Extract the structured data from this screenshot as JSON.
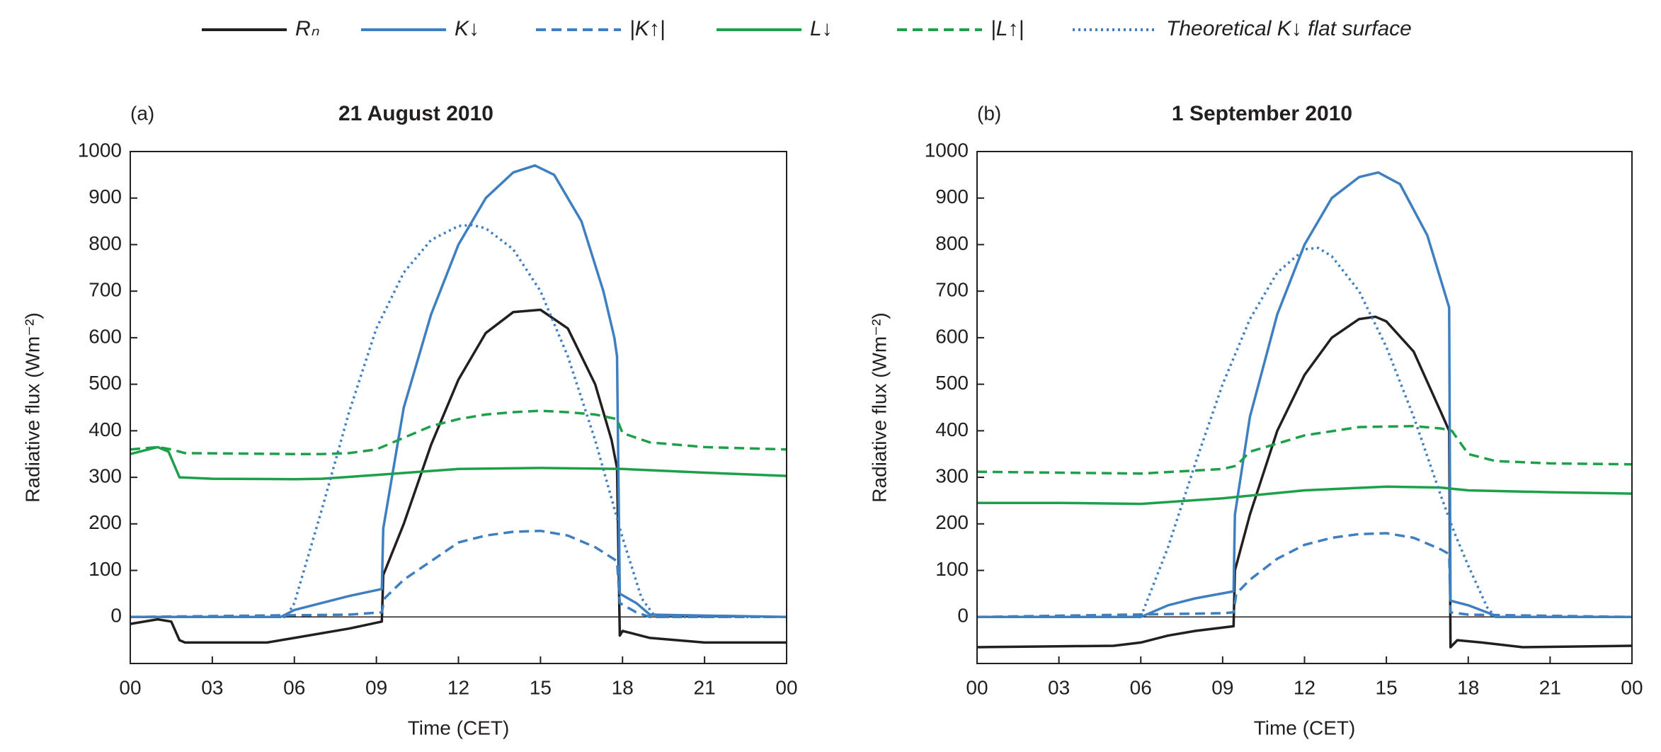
{
  "chart_data": [
    {
      "type": "line",
      "panel_label": "(a)",
      "title": "21 August 2010",
      "x_label": "Time (CET)",
      "y_label": "Radiative flux (Wm⁻²)",
      "xlim": [
        0,
        24
      ],
      "xticks": [
        {
          "value": 0,
          "label": "00"
        },
        {
          "value": 3,
          "label": "03"
        },
        {
          "value": 6,
          "label": "06"
        },
        {
          "value": 9,
          "label": "09"
        },
        12,
        15,
        18,
        21,
        {
          "value": 24,
          "label": "00"
        }
      ],
      "ylim": [
        -100,
        1000
      ],
      "yticks": [
        0,
        100,
        200,
        300,
        400,
        500,
        600,
        700,
        800,
        900,
        1000
      ],
      "series": [
        {
          "name": "Rₙ",
          "color": "#231f20",
          "dash": "solid",
          "x": [
            0,
            1,
            1.5,
            1.8,
            2,
            5,
            6,
            8,
            9.2,
            9.25,
            10,
            11,
            12,
            13,
            14,
            15,
            16,
            17,
            17.6,
            17.8,
            17.9,
            18,
            19,
            21,
            24
          ],
          "values": [
            -15,
            -5,
            -10,
            -50,
            -55,
            -55,
            -45,
            -25,
            -10,
            90,
            200,
            370,
            510,
            610,
            655,
            660,
            620,
            500,
            380,
            320,
            -40,
            -30,
            -45,
            -55,
            -55
          ]
        },
        {
          "name": "K↓",
          "color": "#3d7fc0",
          "dash": "solid",
          "x": [
            0,
            5.5,
            6,
            7,
            8,
            9.2,
            9.25,
            10,
            11,
            12,
            13,
            14,
            14.8,
            15.5,
            16.5,
            17.3,
            17.7,
            17.8,
            17.9,
            18.5,
            19,
            24
          ],
          "values": [
            0,
            0,
            15,
            30,
            45,
            60,
            190,
            450,
            650,
            800,
            900,
            955,
            970,
            950,
            850,
            700,
            600,
            560,
            50,
            30,
            5,
            0
          ]
        },
        {
          "name": "|K↑|",
          "color": "#3d7fc0",
          "dash": "dashed",
          "x": [
            0,
            8,
            9.2,
            9.3,
            10,
            11,
            12,
            13,
            14,
            15,
            16,
            17,
            17.8,
            17.9,
            18.5,
            19,
            24
          ],
          "values": [
            0,
            5,
            10,
            40,
            80,
            120,
            160,
            175,
            183,
            185,
            175,
            150,
            120,
            30,
            10,
            0,
            0
          ]
        },
        {
          "name": "L↓",
          "color": "#1ea04a",
          "dash": "solid",
          "x": [
            0,
            1,
            1.4,
            1.8,
            3,
            6,
            7,
            9,
            12,
            15,
            18,
            21,
            24
          ],
          "values": [
            350,
            365,
            355,
            300,
            297,
            296,
            297,
            305,
            318,
            320,
            318,
            310,
            303
          ]
        },
        {
          "name": "|L↑|",
          "color": "#1ea04a",
          "dash": "dashed",
          "x": [
            0,
            1,
            1.5,
            2,
            6,
            7,
            8,
            9,
            10,
            11,
            12,
            13,
            14,
            15,
            16,
            17,
            17.8,
            18,
            19,
            21,
            24
          ],
          "values": [
            360,
            365,
            360,
            352,
            350,
            350,
            352,
            360,
            385,
            410,
            425,
            435,
            440,
            443,
            440,
            435,
            425,
            395,
            375,
            365,
            360
          ]
        },
        {
          "name": "Theoretical K↓ flat surface",
          "color": "#3d7fc0",
          "dash": "dotted",
          "x": [
            0,
            5.7,
            6,
            7,
            8,
            9,
            10,
            11,
            12,
            12.5,
            13,
            14,
            15,
            16,
            17,
            18,
            18.7,
            19.2,
            24
          ],
          "values": [
            0,
            0,
            30,
            230,
            440,
            620,
            740,
            810,
            840,
            842,
            835,
            790,
            700,
            560,
            380,
            170,
            40,
            0,
            0
          ]
        }
      ]
    },
    {
      "type": "line",
      "panel_label": "(b)",
      "title": "1 September 2010",
      "x_label": "Time (CET)",
      "y_label": "Radiative flux (Wm⁻²)",
      "xlim": [
        0,
        24
      ],
      "xticks": [
        {
          "value": 0,
          "label": "00"
        },
        {
          "value": 3,
          "label": "03"
        },
        {
          "value": 6,
          "label": "06"
        },
        {
          "value": 9,
          "label": "09"
        },
        12,
        15,
        18,
        21,
        {
          "value": 24,
          "label": "00"
        }
      ],
      "ylim": [
        -100,
        1000
      ],
      "yticks": [
        0,
        100,
        200,
        300,
        400,
        500,
        600,
        700,
        800,
        900,
        1000
      ],
      "series": [
        {
          "color": "#231f20",
          "dash": "solid",
          "x": [
            0,
            3,
            5,
            6,
            7,
            8,
            9.4,
            9.45,
            10,
            11,
            12,
            13,
            14,
            14.6,
            15,
            16,
            17,
            17.3,
            17.35,
            17.6,
            18.5,
            20,
            24
          ],
          "values": [
            -65,
            -63,
            -62,
            -55,
            -40,
            -30,
            -20,
            100,
            220,
            400,
            520,
            600,
            640,
            645,
            635,
            570,
            440,
            400,
            -65,
            -50,
            -55,
            -65,
            -62
          ]
        },
        {
          "color": "#3d7fc0",
          "dash": "solid",
          "x": [
            0,
            6,
            7,
            8,
            9.4,
            9.45,
            10,
            11,
            12,
            13,
            14,
            14.7,
            15.5,
            16.5,
            17.3,
            17.35,
            18,
            18.9,
            19,
            24
          ],
          "values": [
            0,
            0,
            25,
            40,
            55,
            220,
            430,
            650,
            800,
            900,
            945,
            955,
            930,
            820,
            665,
            35,
            25,
            5,
            0,
            0
          ]
        },
        {
          "color": "#3d7fc0",
          "dash": "dashed",
          "x": [
            0,
            9,
            9.4,
            9.5,
            10,
            11,
            12,
            13,
            14,
            15,
            16,
            17,
            17.3,
            17.35,
            18,
            24
          ],
          "values": [
            0,
            8,
            10,
            50,
            80,
            125,
            155,
            170,
            178,
            180,
            170,
            145,
            135,
            10,
            5,
            0
          ]
        },
        {
          "color": "#1ea04a",
          "dash": "solid",
          "x": [
            0,
            3,
            6,
            9,
            12,
            15,
            17,
            18,
            21,
            24
          ],
          "values": [
            245,
            245,
            243,
            255,
            272,
            280,
            278,
            272,
            268,
            265
          ]
        },
        {
          "color": "#1ea04a",
          "dash": "dashed",
          "x": [
            0,
            3,
            6,
            9,
            9.5,
            10,
            12,
            14,
            16,
            17,
            17.4,
            18,
            19,
            21,
            24
          ],
          "values": [
            312,
            310,
            308,
            318,
            325,
            355,
            390,
            408,
            410,
            405,
            400,
            350,
            335,
            330,
            328
          ]
        },
        {
          "color": "#3d7fc0",
          "dash": "dotted",
          "x": [
            0,
            6,
            7,
            8,
            9,
            10,
            11,
            12,
            12.5,
            13,
            14,
            15,
            16,
            17,
            17.5,
            18,
            18.7,
            19,
            24
          ],
          "values": [
            0,
            0,
            150,
            330,
            500,
            640,
            740,
            790,
            793,
            775,
            700,
            580,
            430,
            260,
            180,
            110,
            20,
            0,
            0
          ]
        }
      ]
    }
  ]
}
